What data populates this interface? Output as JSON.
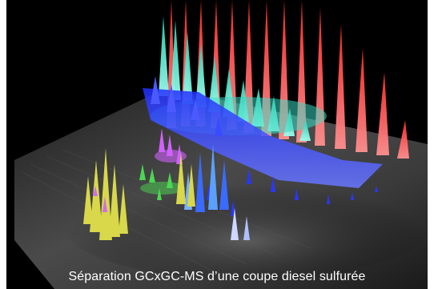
{
  "caption": "Séparation GCxGC-MS d’une coupe diesel sulfurée",
  "palette": {
    "background": "#000000",
    "plane": "#3a3a3a",
    "red": "#ff3a3a",
    "cyan": "#2ee8c8",
    "blue": "#2a36ff",
    "magenta": "#d060ff",
    "yellow": "#d8d84a",
    "green": "#4ad850"
  }
}
